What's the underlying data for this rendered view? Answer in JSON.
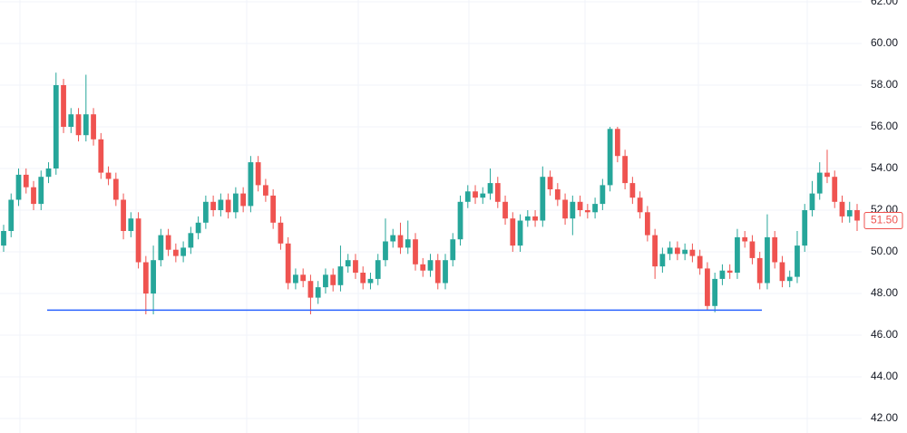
{
  "chart_data": {
    "type": "candlestick",
    "up_color": "#26a69a",
    "down_color": "#ef5350",
    "ylim": [
      42,
      62
    ],
    "yticks": [
      {
        "value": 42,
        "label": "42.00"
      },
      {
        "value": 44,
        "label": "44.00"
      },
      {
        "value": 46,
        "label": "46.00"
      },
      {
        "value": 48,
        "label": "48.00"
      },
      {
        "value": 50,
        "label": "50.00"
      },
      {
        "value": 52,
        "label": "52.00"
      },
      {
        "value": 54,
        "label": "54.00"
      },
      {
        "value": 56,
        "label": "56.00"
      },
      {
        "value": 58,
        "label": "58.00"
      },
      {
        "value": 60,
        "label": "60.00"
      },
      {
        "value": 62,
        "label": "62.00"
      }
    ],
    "grid": true,
    "open": [
      50.3,
      51.0,
      52.5,
      53.7,
      53.1,
      52.3,
      53.6,
      54.0,
      58.0,
      56.0,
      56.6,
      55.6,
      56.6,
      55.4,
      53.8,
      53.5,
      52.5,
      51.0,
      51.6,
      49.5,
      48.0,
      49.6,
      50.8,
      50.1,
      49.8,
      50.2,
      50.9,
      51.4,
      52.4,
      52.0,
      52.5,
      51.9,
      52.8,
      52.2,
      54.3,
      53.2,
      52.7,
      51.4,
      50.4,
      48.5,
      48.9,
      48.6,
      47.8,
      48.3,
      48.9,
      48.4,
      49.3,
      49.6,
      49.0,
      48.5,
      48.7,
      49.6,
      50.5,
      50.8,
      50.2,
      50.6,
      49.4,
      49.1,
      49.6,
      48.5,
      49.6,
      50.6,
      52.4,
      52.9,
      52.6,
      52.8,
      53.3,
      52.4,
      51.6,
      50.3,
      51.5,
      51.7,
      51.5,
      53.6,
      53.0,
      52.5,
      51.6,
      52.4,
      52.0,
      51.9,
      52.3,
      53.2,
      55.9,
      54.6,
      53.3,
      52.6,
      51.9,
      50.8,
      49.3,
      49.9,
      50.2,
      49.9,
      50.1,
      49.8,
      49.2,
      47.4,
      48.7,
      49.1,
      49.0,
      50.7,
      50.5,
      49.7,
      48.5,
      50.7,
      49.5,
      48.6,
      48.8,
      50.3,
      52.0,
      52.8,
      53.8,
      53.6,
      52.4,
      51.7,
      52.0
    ],
    "high": [
      51.3,
      52.8,
      54.0,
      54.0,
      53.4,
      53.9,
      54.3,
      58.6,
      58.3,
      56.9,
      56.9,
      58.5,
      56.9,
      55.7,
      54.1,
      53.8,
      52.8,
      51.9,
      51.9,
      49.8,
      50.3,
      51.1,
      51.1,
      50.4,
      50.5,
      51.2,
      51.7,
      52.7,
      52.7,
      52.8,
      52.8,
      53.1,
      53.1,
      54.6,
      54.6,
      53.5,
      53.0,
      51.7,
      50.7,
      49.2,
      49.2,
      48.9,
      48.6,
      49.2,
      49.2,
      50.3,
      49.9,
      49.9,
      49.3,
      49.0,
      49.9,
      51.6,
      51.1,
      51.4,
      51.5,
      50.9,
      49.7,
      49.9,
      49.9,
      49.9,
      50.9,
      52.7,
      53.2,
      53.2,
      53.1,
      54.0,
      53.6,
      52.7,
      51.9,
      51.8,
      52.0,
      52.0,
      54.1,
      53.9,
      53.3,
      52.8,
      52.7,
      52.7,
      52.3,
      52.6,
      53.5,
      56.0,
      56.0,
      54.9,
      53.6,
      52.9,
      52.2,
      51.1,
      50.2,
      50.5,
      50.5,
      50.4,
      50.4,
      50.1,
      49.5,
      49.0,
      49.4,
      49.4,
      51.1,
      51.0,
      50.8,
      50.0,
      51.8,
      51.0,
      49.8,
      49.1,
      51.0,
      52.3,
      53.4,
      54.3,
      54.9,
      53.9,
      52.7,
      52.4,
      52.3
    ],
    "low": [
      50.0,
      50.7,
      52.2,
      52.8,
      52.0,
      52.0,
      53.3,
      53.7,
      55.7,
      55.7,
      55.3,
      55.3,
      55.1,
      53.5,
      53.2,
      52.2,
      50.6,
      50.7,
      49.2,
      47.0,
      47.0,
      49.3,
      49.8,
      49.5,
      49.5,
      49.9,
      50.6,
      51.1,
      51.7,
      51.7,
      51.6,
      51.6,
      51.9,
      51.9,
      52.9,
      52.4,
      51.1,
      50.1,
      48.2,
      48.2,
      48.3,
      47.0,
      47.5,
      48.0,
      48.1,
      48.1,
      49.0,
      48.7,
      48.2,
      48.2,
      48.4,
      49.3,
      50.2,
      49.9,
      49.9,
      49.1,
      48.8,
      48.8,
      48.2,
      48.2,
      49.3,
      50.3,
      52.1,
      52.3,
      52.3,
      52.5,
      52.1,
      51.3,
      50.0,
      50.0,
      51.2,
      51.2,
      51.2,
      52.7,
      52.2,
      51.3,
      50.8,
      51.7,
      51.6,
      51.6,
      52.0,
      52.9,
      54.3,
      53.0,
      52.3,
      51.6,
      50.5,
      48.7,
      49.0,
      49.6,
      49.6,
      49.6,
      49.5,
      48.9,
      47.2,
      47.1,
      48.4,
      48.7,
      48.7,
      50.2,
      49.4,
      48.2,
      48.2,
      49.2,
      48.3,
      48.3,
      48.5,
      50.0,
      51.7,
      52.5,
      53.3,
      52.1,
      51.4,
      51.4,
      51.0
    ],
    "close": [
      51.0,
      52.5,
      53.7,
      53.1,
      52.3,
      53.6,
      54.0,
      58.0,
      56.0,
      56.6,
      55.6,
      56.6,
      55.4,
      53.8,
      53.5,
      52.5,
      51.0,
      51.6,
      49.5,
      48.0,
      49.6,
      50.8,
      50.1,
      49.8,
      50.2,
      50.9,
      51.4,
      52.4,
      52.0,
      52.5,
      51.9,
      52.8,
      52.2,
      54.3,
      53.2,
      52.7,
      51.4,
      50.4,
      48.5,
      48.9,
      48.6,
      47.8,
      48.3,
      48.9,
      48.4,
      49.3,
      49.6,
      49.0,
      48.5,
      48.7,
      49.6,
      50.5,
      50.8,
      50.2,
      50.6,
      49.4,
      49.1,
      49.6,
      48.5,
      49.6,
      50.6,
      52.4,
      52.9,
      52.6,
      52.8,
      53.3,
      52.4,
      51.6,
      50.3,
      51.5,
      51.7,
      51.5,
      53.6,
      53.0,
      52.5,
      51.6,
      52.4,
      52.0,
      51.9,
      52.3,
      53.2,
      55.9,
      54.6,
      53.3,
      52.6,
      51.9,
      50.8,
      49.3,
      49.9,
      50.2,
      49.9,
      50.1,
      49.8,
      49.2,
      47.4,
      48.7,
      49.1,
      49.0,
      50.7,
      50.5,
      49.7,
      48.5,
      50.7,
      49.5,
      48.6,
      48.8,
      50.3,
      52.0,
      52.8,
      53.8,
      53.6,
      52.4,
      51.7,
      52.0,
      51.5
    ],
    "hline": {
      "value": 47.2,
      "color": "#2962ff"
    },
    "last_price": {
      "value": 51.5,
      "label": "51.50"
    }
  }
}
